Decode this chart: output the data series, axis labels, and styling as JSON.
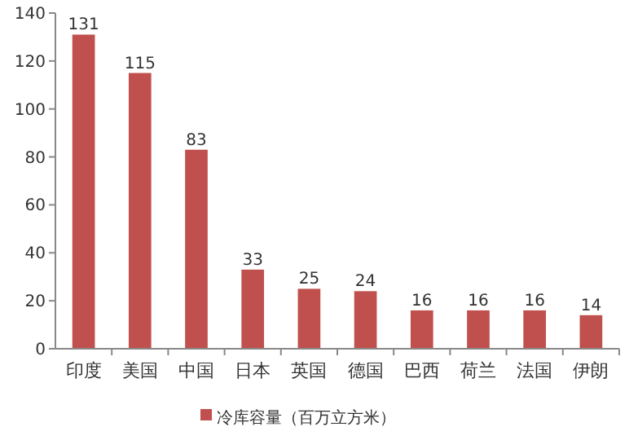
{
  "chart_data": {
    "type": "bar",
    "categories": [
      "印度",
      "美国",
      "中国",
      "日本",
      "英国",
      "德国",
      "巴西",
      "荷兰",
      "法国",
      "伊朗"
    ],
    "series": [
      {
        "name": "冷库容量（百万立方米）",
        "color": "#c0504d",
        "values": [
          131,
          115,
          83,
          33,
          25,
          24,
          16,
          16,
          16,
          14
        ]
      }
    ],
    "ylim": [
      0,
      140
    ],
    "yticks": [
      0,
      20,
      40,
      60,
      80,
      100,
      120,
      140
    ],
    "data_labels": true,
    "legend": "bottom",
    "grid": false
  }
}
